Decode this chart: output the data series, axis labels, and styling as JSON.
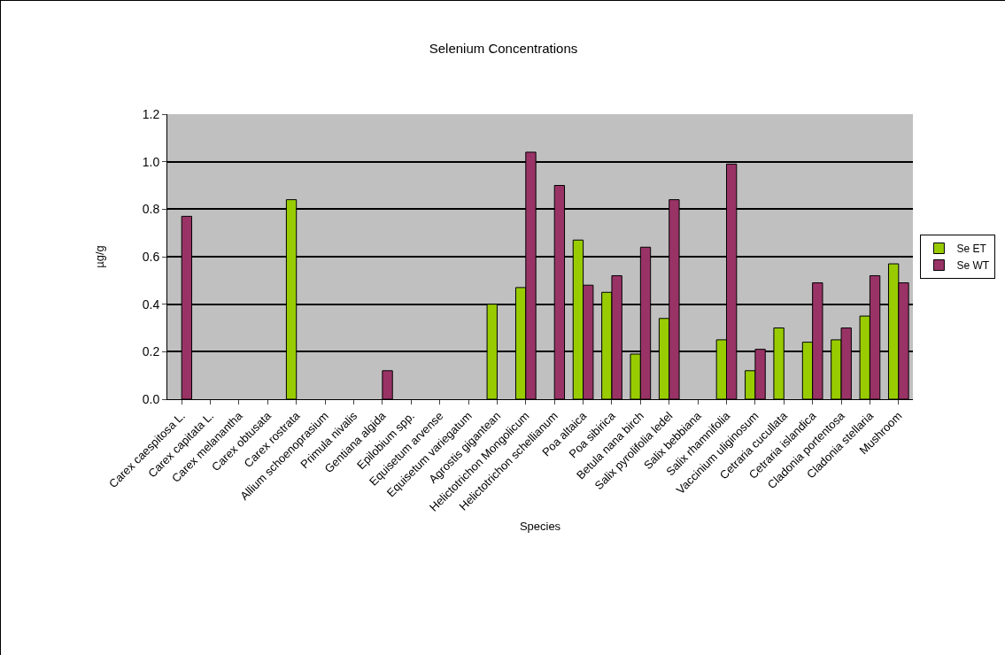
{
  "chart_data": {
    "type": "bar",
    "title": "Selenium Concentrations",
    "xlabel": "Species",
    "ylabel": "µg/g",
    "categories": [
      "Carex caespitosa L.",
      "Carex capitata L.",
      "Carex melanantha",
      "Carex obtusata",
      "Carex rostrata",
      "Allium schoenoprasium",
      "Primula nivalis",
      "Gentiana algida",
      "Epilobium spp.",
      "Equisetum arvense",
      "Equisetum variegatum",
      "Agrostis gigantean",
      "Helictotrichon Mongolicum",
      "Helictotrichon schellianum",
      "Poa altaica",
      "Poa sibirica",
      "Betula nana birch",
      "Salix pyrolifolia ledel",
      "Salix bebbiana",
      "Salix rhamnifolia",
      "Vaccinium uliginosum",
      "Cetraria cucullata",
      "Cetraria islandica",
      "Cladonia portentosa",
      "Cladonia stellaria",
      "Mushroom"
    ],
    "series": [
      {
        "name": "Se ET",
        "color": "#99cc00",
        "values": [
          null,
          null,
          null,
          null,
          0.84,
          null,
          null,
          null,
          null,
          null,
          null,
          0.4,
          0.47,
          null,
          0.67,
          0.45,
          0.19,
          0.34,
          null,
          0.25,
          0.12,
          0.3,
          0.24,
          0.25,
          0.35,
          0.57
        ]
      },
      {
        "name": "Se WT",
        "color": "#993366",
        "values": [
          0.77,
          null,
          null,
          null,
          null,
          null,
          null,
          0.12,
          null,
          null,
          null,
          null,
          1.04,
          0.9,
          0.48,
          0.52,
          0.64,
          0.84,
          null,
          0.99,
          0.21,
          null,
          0.49,
          0.3,
          0.52,
          0.49
        ]
      }
    ],
    "ylim": [
      0,
      1.2
    ],
    "yticks": [
      {
        "value": 0,
        "label": "0.0"
      },
      0.2,
      0.4,
      0.6,
      0.8,
      {
        "value": 1,
        "label": "1.0"
      },
      1.2
    ],
    "grid": "y",
    "legend": "right"
  }
}
